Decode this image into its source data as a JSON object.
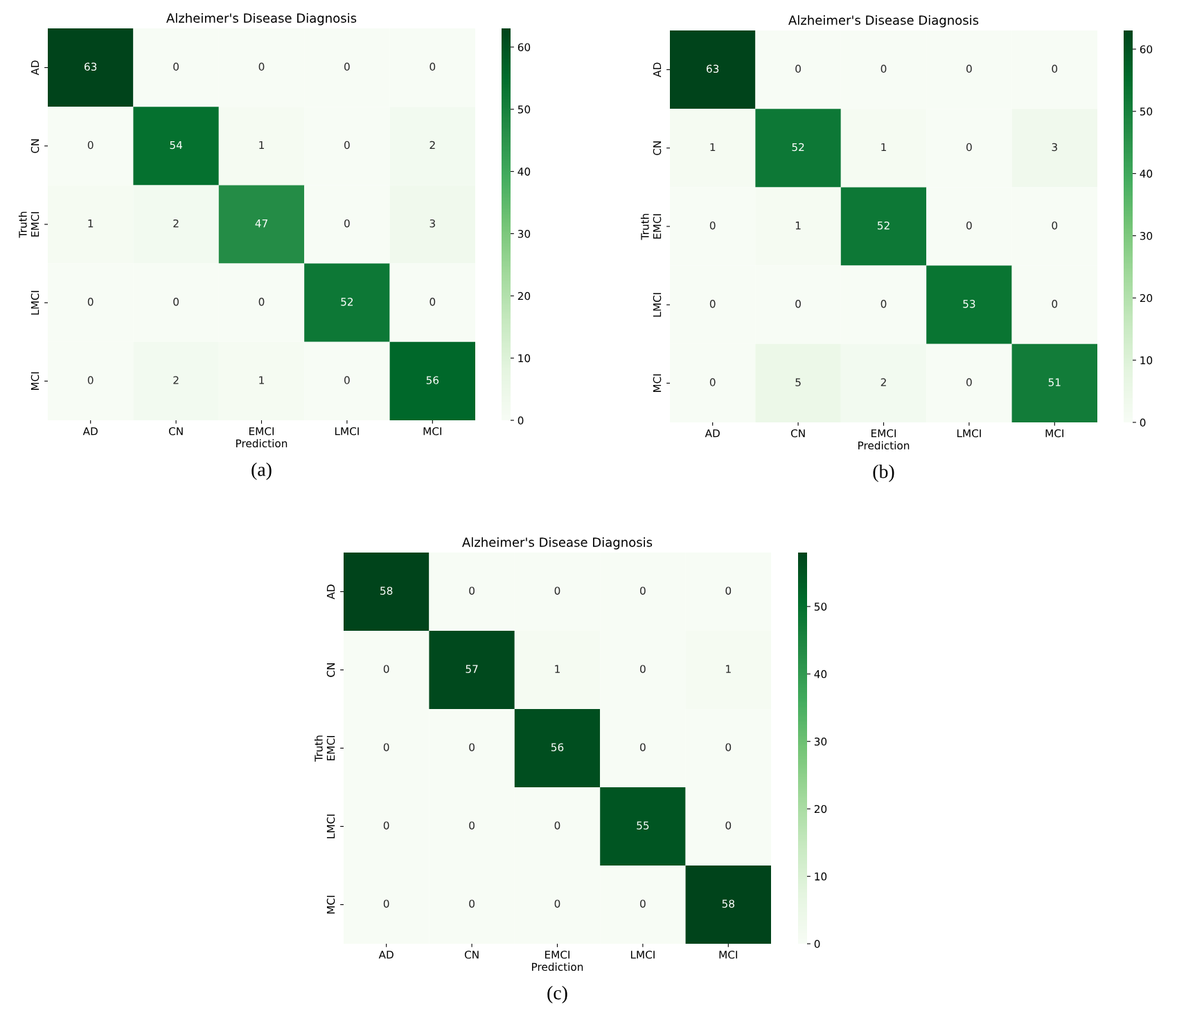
{
  "chart_data": [
    {
      "type": "heatmap",
      "title": "Alzheimer's Disease Diagnosis",
      "xlabel": "Prediction",
      "ylabel": "Truth",
      "categories": [
        "AD",
        "CN",
        "EMCI",
        "LMCI",
        "MCI"
      ],
      "y_categories": [
        "AD",
        "CN",
        "EMCI",
        "LMCI",
        "MCI"
      ],
      "cells": [
        [
          63,
          0,
          0,
          0,
          0
        ],
        [
          0,
          54,
          1,
          0,
          2
        ],
        [
          1,
          2,
          47,
          0,
          3
        ],
        [
          0,
          0,
          0,
          52,
          0
        ],
        [
          0,
          2,
          1,
          0,
          56
        ]
      ],
      "clim": [
        0,
        63
      ],
      "cticks": [
        0,
        10,
        20,
        30,
        40,
        50,
        60
      ],
      "data_labels": true,
      "annotations": [
        "(a)"
      ]
    },
    {
      "type": "heatmap",
      "title": "Alzheimer's Disease Diagnosis",
      "xlabel": "Prediction",
      "ylabel": "Truth",
      "categories": [
        "AD",
        "CN",
        "EMCI",
        "LMCI",
        "MCI"
      ],
      "y_categories": [
        "AD",
        "CN",
        "EMCI",
        "LMCI",
        "MCI"
      ],
      "cells": [
        [
          63,
          0,
          0,
          0,
          0
        ],
        [
          1,
          52,
          1,
          0,
          3
        ],
        [
          0,
          1,
          52,
          0,
          0
        ],
        [
          0,
          0,
          0,
          53,
          0
        ],
        [
          0,
          5,
          2,
          0,
          51
        ]
      ],
      "clim": [
        0,
        63
      ],
      "cticks": [
        0,
        10,
        20,
        30,
        40,
        50,
        60
      ],
      "data_labels": true,
      "annotations": [
        "(b)"
      ]
    },
    {
      "type": "heatmap",
      "title": "Alzheimer's Disease Diagnosis",
      "xlabel": "Prediction",
      "ylabel": "Truth",
      "categories": [
        "AD",
        "CN",
        "EMCI",
        "LMCI",
        "MCI"
      ],
      "y_categories": [
        "AD",
        "CN",
        "EMCI",
        "LMCI",
        "MCI"
      ],
      "cells": [
        [
          58,
          0,
          0,
          0,
          0
        ],
        [
          0,
          57,
          1,
          0,
          1
        ],
        [
          0,
          0,
          56,
          0,
          0
        ],
        [
          0,
          0,
          0,
          55,
          0
        ],
        [
          0,
          0,
          0,
          0,
          58
        ]
      ],
      "clim": [
        0,
        58
      ],
      "cticks": [
        0,
        10,
        20,
        30,
        40,
        50
      ],
      "data_labels": true,
      "annotations": [
        "(c)"
      ]
    }
  ]
}
